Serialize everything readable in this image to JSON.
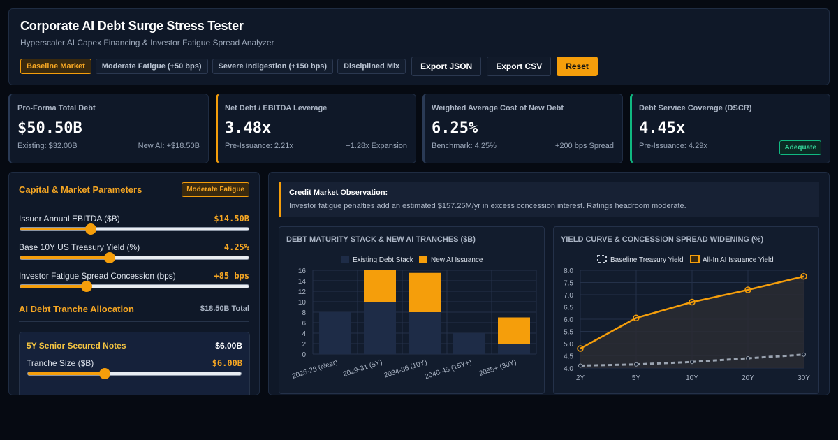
{
  "header": {
    "title": "Corporate AI Debt Surge Stress Tester",
    "subtitle": "Hyperscaler AI Capex Financing & Investor Fatigue Spread Analyzer",
    "scenarios": [
      "Baseline Market",
      "Moderate Fatigue (+50 bps)",
      "Severe Indigestion (+150 bps)",
      "Disciplined Mix"
    ],
    "active_scenario": 0,
    "export_json": "Export JSON",
    "export_csv": "Export CSV",
    "reset": "Reset"
  },
  "kpis": [
    {
      "label": "Pro-Forma Total Debt",
      "value": "$50.50B",
      "left": "Existing: $32.00B",
      "right": "New AI: +$18.50B",
      "accent": "#2a3a55"
    },
    {
      "label": "Net Debt / EBITDA Leverage",
      "value": "3.48x",
      "left": "Pre-Issuance: 2.21x",
      "right": "+1.28x Expansion",
      "accent": "#f59e0b"
    },
    {
      "label": "Weighted Average Cost of New Debt",
      "value": "6.25%",
      "left": "Benchmark: 4.25%",
      "right": "+200 bps Spread",
      "accent": "#2a3a55"
    },
    {
      "label": "Debt Service Coverage (DSCR)",
      "value": "4.45x",
      "left": "Pre-Issuance: 4.29x",
      "badge": "Adequate",
      "accent": "#10b981"
    }
  ],
  "params": {
    "title": "Capital & Market Parameters",
    "badge": "Moderate Fatigue",
    "items": [
      {
        "label": "Issuer Annual EBITDA ($B)",
        "value": "$14.50B",
        "level": 0.31
      },
      {
        "label": "Base 10Y US Treasury Yield (%)",
        "value": "4.25%",
        "level": 0.39
      },
      {
        "label": "Investor Fatigue Spread Concession (bps)",
        "value": "+85 bps",
        "level": 0.29
      }
    ]
  },
  "allocation": {
    "title": "AI Debt Tranche Allocation",
    "total": "$18.50B Total",
    "tranche": {
      "name": "5Y Senior Secured Notes",
      "amount": "$6.00B",
      "size_label": "Tranche Size ($B)",
      "size_value": "$6.00B",
      "level": 0.36
    }
  },
  "observation": {
    "title": "Credit Market Observation:",
    "text": "Investor fatigue penalties add an estimated $157.25M/yr in excess concession interest. Ratings headroom moderate."
  },
  "charts": {
    "maturity_title": "DEBT MATURITY STACK & NEW AI TRANCHES ($B)",
    "yield_title": "YIELD CURVE & CONCESSION SPREAD WIDENING (%)"
  },
  "chart_data": [
    {
      "type": "bar",
      "stacked": true,
      "title": "DEBT MATURITY STACK & NEW AI TRANCHES ($B)",
      "categories": [
        "2026-28 (Near)",
        "2029-31 (5Y)",
        "2034-36 (10Y)",
        "2040-45 (15Y+)",
        "2055+ (30Y)"
      ],
      "series": [
        {
          "name": "Existing Debt Stack",
          "values": [
            8,
            10,
            8,
            4,
            2
          ],
          "color": "#1e2c47"
        },
        {
          "name": "New AI Issuance",
          "values": [
            0,
            6,
            7.5,
            0,
            5
          ],
          "color": "#f59e0b"
        }
      ],
      "ylim": [
        0,
        16
      ],
      "yticks": [
        0,
        2,
        4,
        6,
        8,
        10,
        12,
        14,
        16
      ],
      "legend": "top"
    },
    {
      "type": "line",
      "title": "YIELD CURVE & CONCESSION SPREAD WIDENING (%)",
      "x": [
        "2Y",
        "5Y",
        "10Y",
        "20Y",
        "30Y"
      ],
      "series": [
        {
          "name": "Baseline Treasury Yield",
          "values": [
            4.1,
            4.15,
            4.25,
            4.4,
            4.55
          ],
          "color": "#9aa3b0"
        },
        {
          "name": "All-In AI Issuance Yield",
          "values": [
            4.8,
            6.05,
            6.7,
            7.2,
            7.75
          ],
          "color": "#f59e0b"
        }
      ],
      "ylim": [
        4.0,
        8.0
      ],
      "yticks": [
        "4.0",
        "4.5",
        "5.0",
        "5.5",
        "6.0",
        "6.5",
        "7.0",
        "7.5",
        "8.0"
      ],
      "legend": "top"
    }
  ]
}
